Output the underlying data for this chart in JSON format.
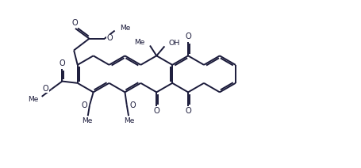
{
  "bg": "#ffffff",
  "lc": "#1a1a3a",
  "lw": 1.4,
  "s": 0.38,
  "figsize": [
    4.56,
    2.12
  ],
  "dpi": 100,
  "xlim": [
    -0.8,
    8.0
  ],
  "ylim": [
    -0.75,
    3.8
  ]
}
